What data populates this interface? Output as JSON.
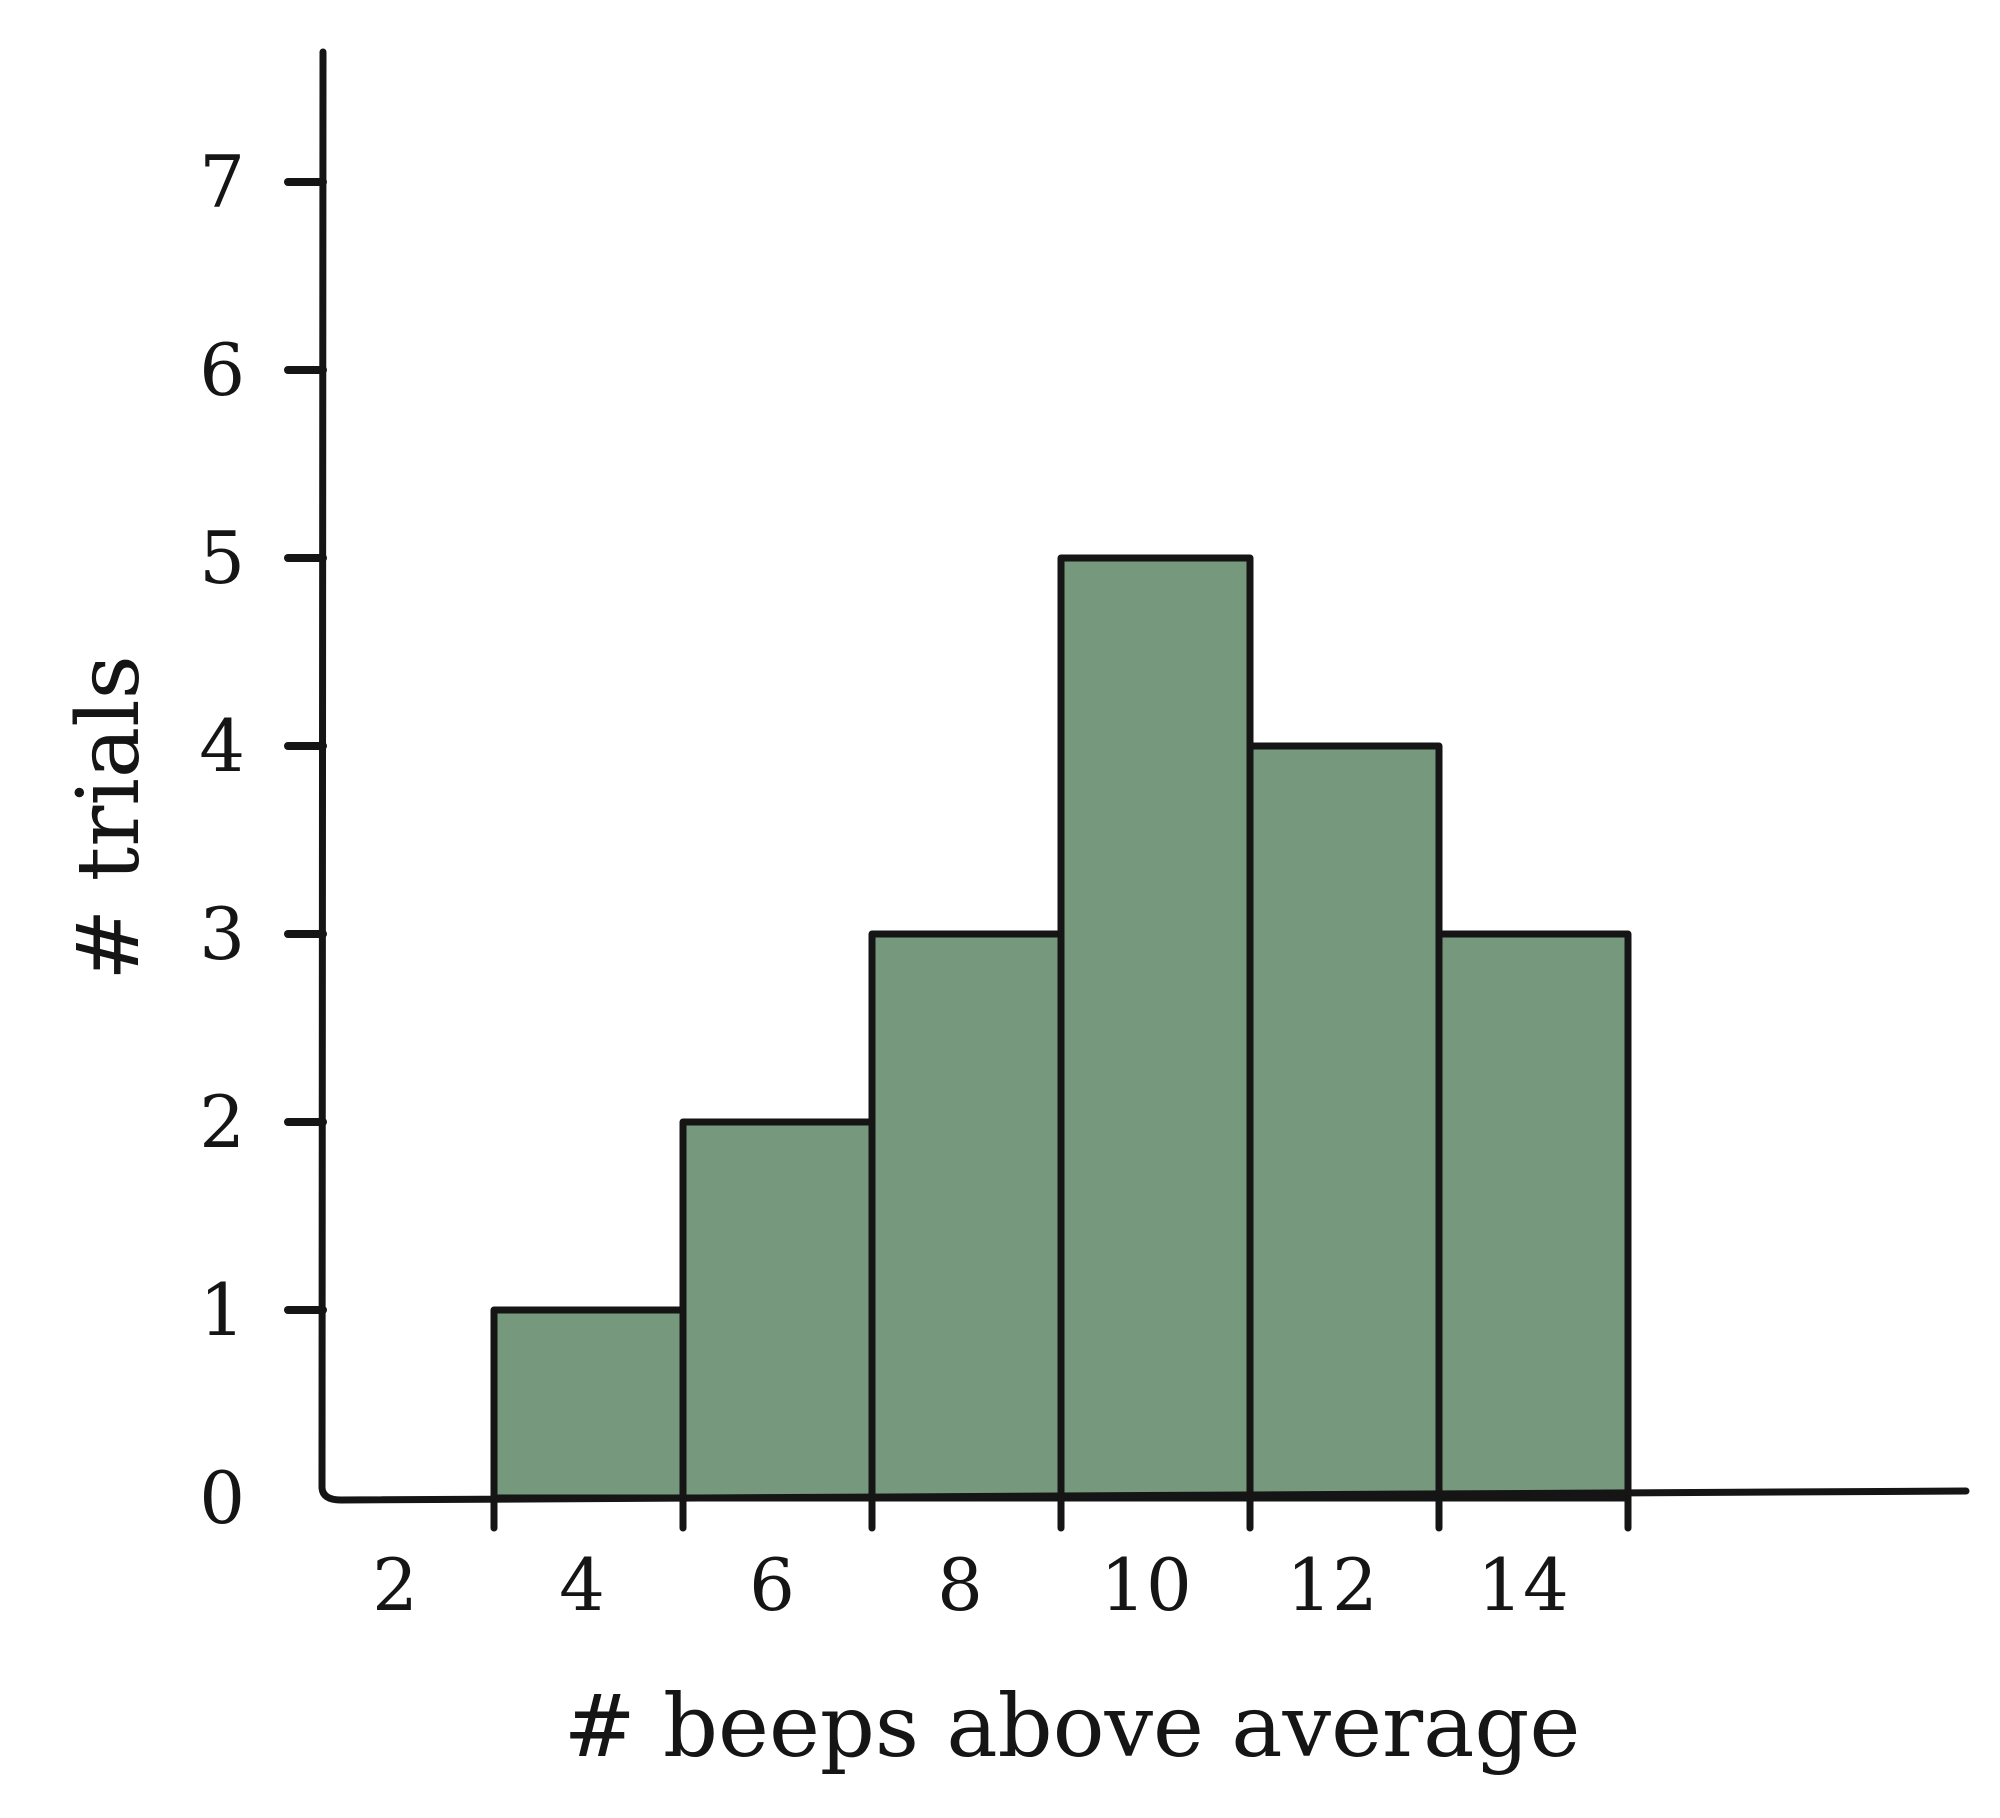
{
  "chart_data": {
    "type": "bar",
    "x": [
      4,
      6,
      8,
      10,
      12,
      14
    ],
    "values": [
      1,
      2,
      3,
      5,
      4,
      3
    ],
    "x_tick_labels": [
      "2",
      "4",
      "6",
      "8",
      "10",
      "12",
      "14"
    ],
    "y_tick_labels": [
      "0",
      "1",
      "2",
      "3",
      "4",
      "5",
      "6",
      "7"
    ],
    "xlabel": "# beeps above average",
    "ylabel": "# trials",
    "ylim": [
      0,
      7.8
    ],
    "grid": false,
    "colors": {
      "bar_fill": "#76997d",
      "ink": "#151515"
    }
  }
}
